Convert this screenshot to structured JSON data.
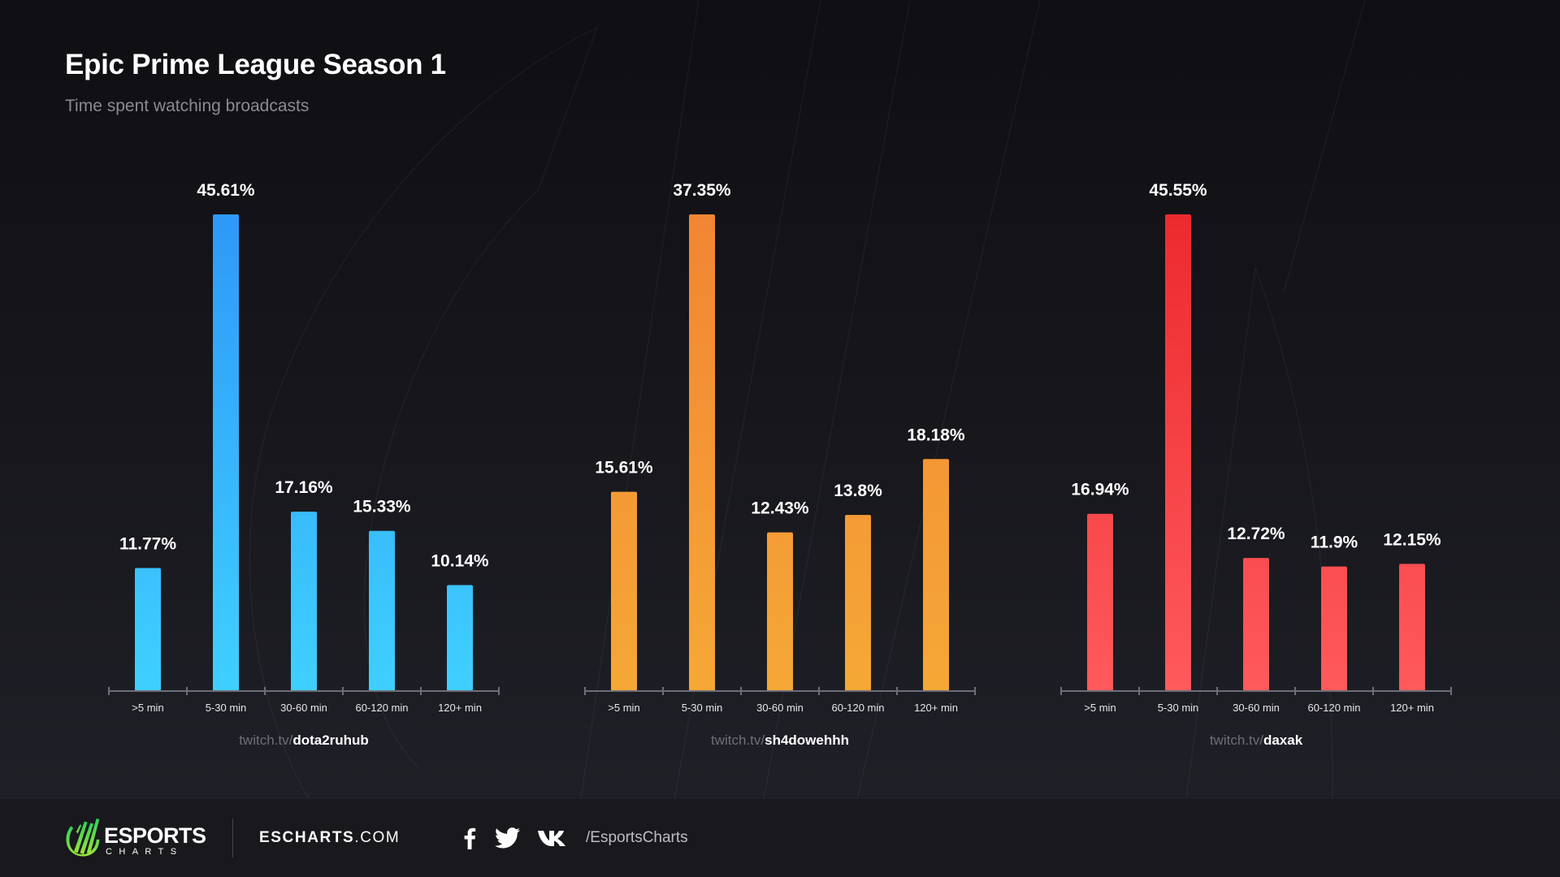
{
  "header": {
    "title": "Epic Prime League Season 1",
    "subtitle": "Time spent watching broadcasts"
  },
  "chart_data": [
    {
      "type": "bar",
      "title": "twitch.tv/dota2ruhub",
      "channel_prefix": "twitch.tv/",
      "channel_name": "dota2ruhub",
      "categories": [
        ">5 min",
        "5-30 min",
        "30-60 min",
        "60-120 min",
        "120+ min"
      ],
      "values": [
        11.77,
        45.61,
        17.16,
        15.33,
        10.14
      ],
      "labels": [
        "11.77%",
        "45.61%",
        "17.16%",
        "15.33%",
        "10.14%"
      ],
      "unit": "%",
      "xlabel": "",
      "ylabel": "",
      "grid": false,
      "color_top": "#2e98f8",
      "color_bottom": "#3fd0ff"
    },
    {
      "type": "bar",
      "title": "twitch.tv/sh4dowehhh",
      "channel_prefix": "twitch.tv/",
      "channel_name": "sh4dowehhh",
      "categories": [
        ">5 min",
        "5-30 min",
        "30-60 min",
        "60-120 min",
        "120+ min"
      ],
      "values": [
        15.61,
        37.35,
        12.43,
        13.8,
        18.18
      ],
      "labels": [
        "15.61%",
        "37.35%",
        "12.43%",
        "13.8%",
        "18.18%"
      ],
      "unit": "%",
      "xlabel": "",
      "ylabel": "",
      "grid": false,
      "color_top": "#f28534",
      "color_bottom": "#f5a836"
    },
    {
      "type": "bar",
      "title": "twitch.tv/daxak",
      "channel_prefix": "twitch.tv/",
      "channel_name": "daxak",
      "categories": [
        ">5 min",
        "5-30 min",
        "30-60 min",
        "60-120 min",
        "120+ min"
      ],
      "values": [
        16.94,
        45.55,
        12.72,
        11.9,
        12.15
      ],
      "labels": [
        "16.94%",
        "45.55%",
        "12.72%",
        "11.9%",
        "12.15%"
      ],
      "unit": "%",
      "xlabel": "",
      "ylabel": "",
      "grid": false,
      "color_top": "#ec2a2e",
      "color_bottom": "#ff5a5c"
    }
  ],
  "footer": {
    "logo_word": "ESPORTS",
    "logo_sub": "CHARTS",
    "site_bold": "ESCHARTS",
    "site_rest": ".COM",
    "social_icons": [
      "facebook-icon",
      "twitter-icon",
      "vk-icon"
    ],
    "handle": "/EsportsCharts",
    "logo_color_top": "#2fd25a",
    "logo_color_bottom": "#9be33a"
  }
}
